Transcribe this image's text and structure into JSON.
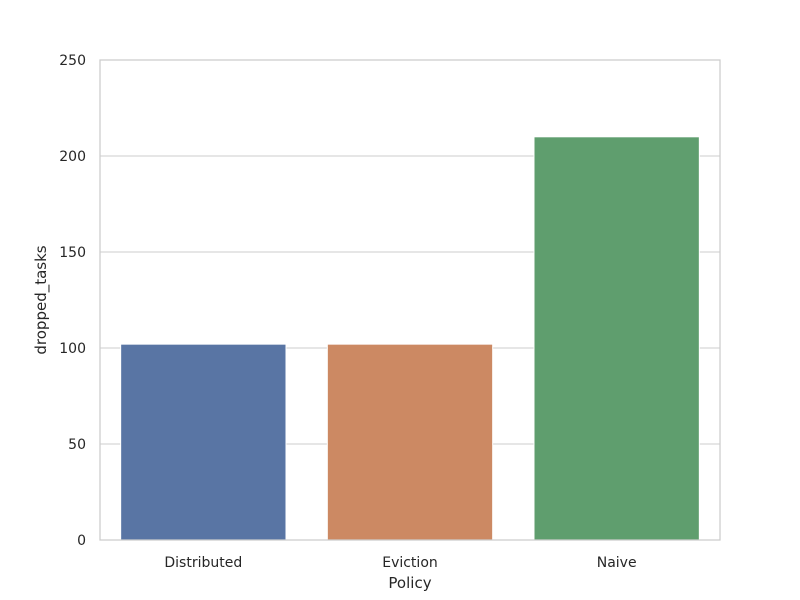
{
  "chart_data": {
    "type": "bar",
    "title": "",
    "xlabel": "Policy",
    "ylabel": "dropped_tasks",
    "categories": [
      "Distributed",
      "Eviction",
      "Naive"
    ],
    "values": [
      102,
      102,
      210
    ],
    "colors": [
      "#5975a4",
      "#cc8963",
      "#5f9e6e"
    ],
    "ylim": [
      0,
      250
    ],
    "yticks": [
      0,
      50,
      100,
      150,
      200,
      250
    ],
    "grid": true,
    "legend": "none"
  }
}
